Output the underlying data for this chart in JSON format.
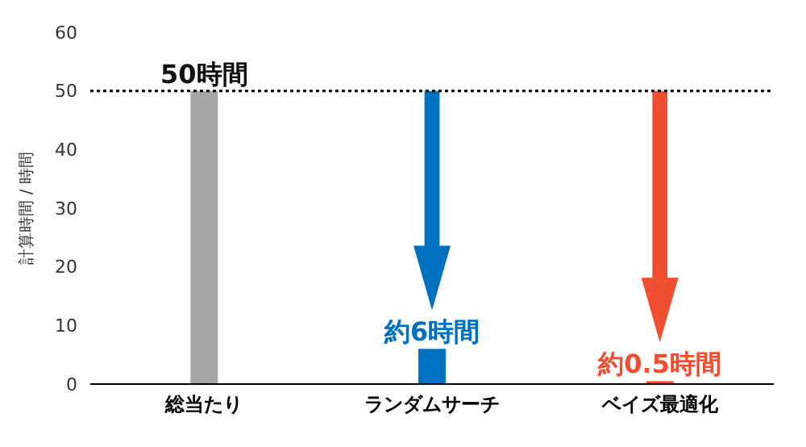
{
  "chart_data": {
    "type": "bar",
    "ylabel": "計算時間 / 時間",
    "categories": [
      "総当たり",
      "ランダムサーチ",
      "ベイズ最適化"
    ],
    "values": [
      50,
      6,
      0.5
    ],
    "colors": [
      "#a6a6a6",
      "#0070c0",
      "#f04e30"
    ],
    "value_labels": [
      "50時間",
      "約6時間",
      "約0.5時間"
    ],
    "ylim": [
      0,
      60
    ],
    "yticks": [
      0,
      10,
      20,
      30,
      40,
      50,
      60
    ],
    "grid": false,
    "ref_lines": [
      {
        "axis": "y",
        "value": 50,
        "color": "#000000",
        "line_style": "dotted"
      }
    ]
  }
}
